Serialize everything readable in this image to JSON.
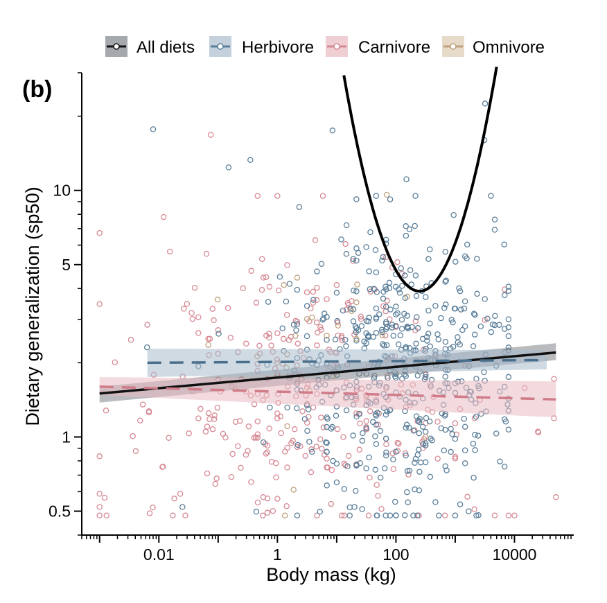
{
  "chart_data": {
    "type": "scatter",
    "panel_label": "(b)",
    "xlabel": "Body mass (kg)",
    "ylabel": "Dietary generalization (sp50)",
    "x_scale": "log",
    "y_scale": "log",
    "xlim": [
      0.0005,
      100000
    ],
    "ylim": [
      0.4,
      30
    ],
    "x_ticks": [
      {
        "value": 0.01,
        "label": "0.01"
      },
      {
        "value": 1,
        "label": "1"
      },
      {
        "value": 100,
        "label": "100"
      },
      {
        "value": 10000,
        "label": "10000"
      }
    ],
    "y_ticks": [
      {
        "value": 0.5,
        "label": "0.5"
      },
      {
        "value": 1,
        "label": "1"
      },
      {
        "value": 5,
        "label": "5"
      },
      {
        "value": 10,
        "label": "10"
      }
    ],
    "grid": false,
    "legend_position": "top",
    "legend": [
      {
        "key": "all",
        "label": "All diets",
        "color": "#111111",
        "fill": "#a5a9ad"
      },
      {
        "key": "herb",
        "label": "Herbivore",
        "color": "#5b7f9a",
        "fill": "#c4d1dc"
      },
      {
        "key": "carn",
        "label": "Carnivore",
        "color": "#d68a94",
        "fill": "#efcfd3"
      },
      {
        "key": "omni",
        "label": "Omnivore",
        "color": "#c0a27e",
        "fill": "#e6dac9"
      }
    ],
    "fits": [
      {
        "name": "All diets",
        "style": "solid",
        "color": "#111111",
        "band": "#7f8488",
        "x": [
          0.001,
          50000
        ],
        "y": [
          1.5,
          2.2
        ],
        "lower": [
          1.38,
          2.05
        ],
        "upper": [
          1.6,
          2.4
        ]
      },
      {
        "name": "Herbivore",
        "style": "dashed",
        "color": "#4a6f8c",
        "band": "#a7bccc",
        "x": [
          0.0064,
          35000
        ],
        "y": [
          2.0,
          2.05
        ],
        "lower": [
          1.75,
          1.88
        ],
        "upper": [
          2.28,
          2.25
        ]
      },
      {
        "name": "Carnivore",
        "style": "dashed",
        "color": "#d07c88",
        "band": "#e9bcc3",
        "x": [
          0.001,
          50000
        ],
        "y": [
          1.6,
          1.42
        ],
        "lower": [
          1.48,
          1.2
        ],
        "upper": [
          1.75,
          1.68
        ]
      },
      {
        "name": "All diets (quadratic)",
        "style": "solid",
        "color": "#000000",
        "x_from": 3,
        "x_to": 5000,
        "vertex_x": 250,
        "vertex_y": 3.9,
        "curvature": 1.28
      }
    ],
    "outliers": [
      {
        "diet": "herb",
        "x": 0.008,
        "y": 17.7
      },
      {
        "diet": "carn",
        "x": 0.075,
        "y": 16.8
      },
      {
        "diet": "herb",
        "x": 0.15,
        "y": 12.4
      },
      {
        "diet": "herb",
        "x": 0.35,
        "y": 13.3
      },
      {
        "diet": "herb",
        "x": 8.5,
        "y": 17.5
      },
      {
        "diet": "herb",
        "x": 150,
        "y": 11.1
      },
      {
        "diet": "herb",
        "x": 3200,
        "y": 22.5
      },
      {
        "diet": "herb",
        "x": 3100,
        "y": 16.0
      },
      {
        "diet": "carn",
        "x": 0.012,
        "y": 7.8
      },
      {
        "diet": "herb",
        "x": 80,
        "y": 9.2
      },
      {
        "diet": "omni",
        "x": 70,
        "y": 9.6
      },
      {
        "diet": "carn",
        "x": 0.001,
        "y": 0.52
      },
      {
        "diet": "herb",
        "x": 0.025,
        "y": 0.52
      },
      {
        "diet": "carn",
        "x": 50000,
        "y": 0.57
      },
      {
        "diet": "carn",
        "x": 0.007,
        "y": 0.49
      },
      {
        "diet": "herb",
        "x": 20,
        "y": 0.52
      }
    ],
    "scatter_density": [
      {
        "diet": "carn",
        "n": 340,
        "x_log_min": -3.0,
        "x_log_max": 4.7,
        "x_center": 0.3,
        "x_spread": 1.55,
        "y_center": 0.18,
        "y_spread": 0.28
      },
      {
        "diet": "herb",
        "n": 500,
        "x_log_min": -2.2,
        "x_log_max": 3.9,
        "x_center": 2.0,
        "x_spread": 1.05,
        "y_center": 0.28,
        "y_spread": 0.3
      },
      {
        "diet": "omni",
        "n": 25,
        "x_log_min": -1.5,
        "x_log_max": 2.5,
        "x_center": 0.8,
        "x_spread": 0.9,
        "y_center": 0.35,
        "y_spread": 0.2
      }
    ]
  }
}
